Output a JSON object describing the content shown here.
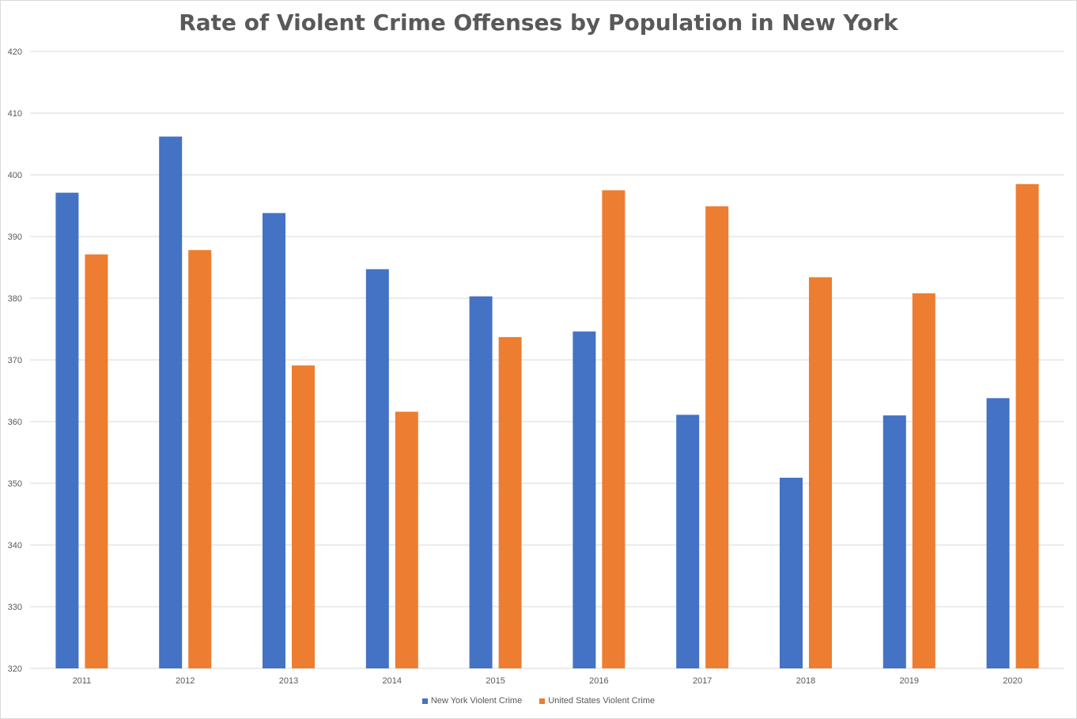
{
  "chart_data": {
    "type": "bar",
    "title": "Rate of Violent Crime Offenses by Population in New York",
    "xlabel": "",
    "ylabel": "",
    "categories": [
      "2011",
      "2012",
      "2013",
      "2014",
      "2015",
      "2016",
      "2017",
      "2018",
      "2019",
      "2020"
    ],
    "series": [
      {
        "name": "New York Violent Crime",
        "color": "#4472C4",
        "values": [
          397.1,
          406.2,
          393.8,
          384.7,
          380.3,
          374.6,
          361.1,
          350.9,
          361.0,
          363.8
        ]
      },
      {
        "name": "United States Violent Crime",
        "color": "#ED7D31",
        "values": [
          387.1,
          387.8,
          369.1,
          361.6,
          373.7,
          397.5,
          394.9,
          383.4,
          380.8,
          398.5
        ]
      }
    ],
    "ylim": [
      320,
      420
    ],
    "yticks": [
      320,
      330,
      340,
      350,
      360,
      370,
      380,
      390,
      400,
      410,
      420
    ],
    "grid": true,
    "legend_position": "bottom"
  }
}
